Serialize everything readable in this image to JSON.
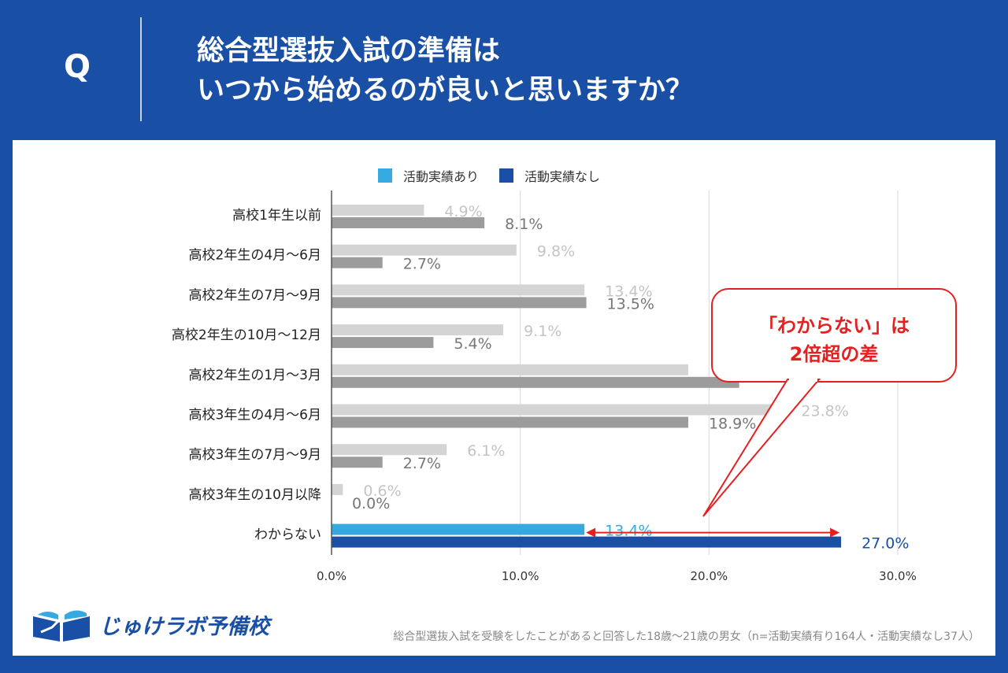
{
  "header": {
    "q_mark": "Q",
    "title_line1": "総合型選抜入試の準備は",
    "title_line2": "いつから始めるのが良いと思いますか？"
  },
  "colors": {
    "page_bg": "#1a4fa6",
    "series_with_activity": "#35a9e0",
    "series_without_activity": "#1a4fa6",
    "bar_light_gray": "#d4d4d4",
    "bar_dark_gray": "#9c9c9c",
    "callout_red": "#e62020"
  },
  "legend": [
    "活動実績あり",
    "活動実績なし"
  ],
  "chart_data": {
    "type": "bar",
    "orientation": "horizontal",
    "categories": [
      "高校1年生以前",
      "高校2年生の4月〜6月",
      "高校2年生の7月〜9月",
      "高校2年生の10月〜12月",
      "高校2年生の1月〜3月",
      "高校3年生の4月〜6月",
      "高校3年生の7月〜9月",
      "高校3年生の10月以降",
      "わからない"
    ],
    "series": [
      {
        "name": "活動実績あり",
        "values": [
          4.9,
          9.8,
          13.4,
          9.1,
          18.9,
          23.8,
          6.1,
          0.6,
          13.4
        ]
      },
      {
        "name": "活動実績なし",
        "values": [
          8.1,
          2.7,
          13.5,
          5.4,
          21.6,
          18.9,
          2.7,
          0.0,
          27.0
        ]
      }
    ],
    "value_labels": [
      [
        "4.9%",
        "9.8%",
        "13.4%",
        "9.1%",
        "",
        "23.8%",
        "6.1%",
        "0.6%",
        "13.4%"
      ],
      [
        "8.1%",
        "2.7%",
        "13.5%",
        "5.4%",
        "",
        "18.9%",
        "2.7%",
        "0.0%",
        "27.0%"
      ]
    ],
    "highlight_category": "わからない",
    "xlim": [
      0,
      30
    ],
    "x_ticks": [
      0,
      10,
      20,
      30
    ],
    "x_tick_labels": [
      "0.0%",
      "10.0%",
      "20.0%",
      "30.0%"
    ],
    "grid": true,
    "legend_position": "top",
    "title": "",
    "xlabel": "",
    "ylabel": ""
  },
  "callout": {
    "line1": "「わからない」は",
    "line2": "2倍超の差"
  },
  "logo": {
    "text": "じゅけラボ予備校",
    "icon": "book-icon"
  },
  "footnote": "総合型選抜入試を受験をしたことがあると回答した18歳〜21歳の男女（n=活動実績有り164人・活動実績なし37人）"
}
